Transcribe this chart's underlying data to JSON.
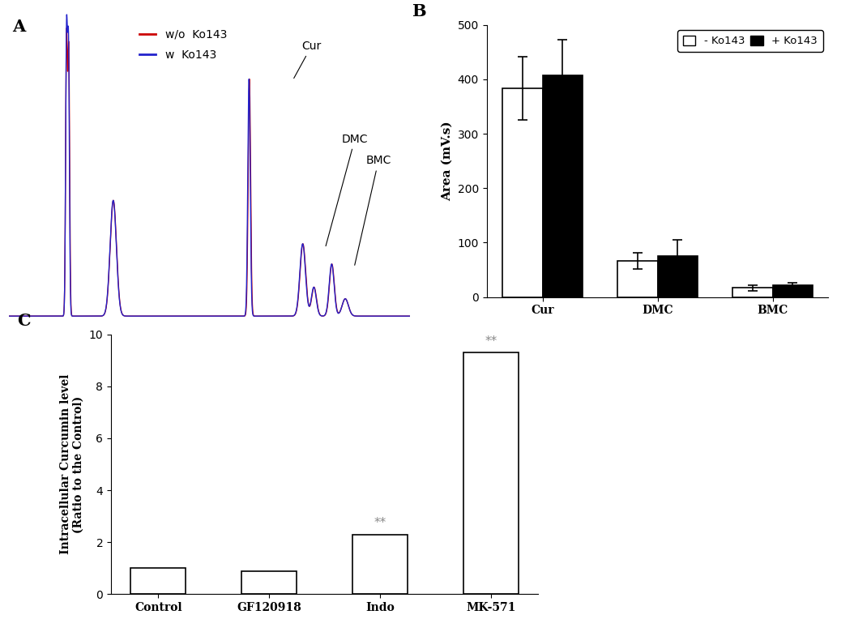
{
  "panel_A": {
    "label": "A",
    "legend": [
      {
        "label": "w/o  Ko143",
        "color": "#cc0000"
      },
      {
        "label": "w  Ko143",
        "color": "#2222cc"
      }
    ]
  },
  "panel_B": {
    "label": "B",
    "categories": [
      "Cur",
      "DMC",
      "BMC"
    ],
    "values_minus": [
      383,
      67,
      17
    ],
    "values_plus": [
      407,
      75,
      22
    ],
    "errors_minus": [
      58,
      15,
      5
    ],
    "errors_plus": [
      65,
      30,
      5
    ],
    "ylabel": "Area (mV.s)",
    "ylim": [
      0,
      500
    ],
    "yticks": [
      0,
      100,
      200,
      300,
      400,
      500
    ],
    "legend_labels": [
      "- Ko143",
      "+ Ko143"
    ],
    "bar_width": 0.35
  },
  "panel_C": {
    "label": "C",
    "categories": [
      "Control",
      "GF120918",
      "Indo",
      "MK-571"
    ],
    "values": [
      1.0,
      0.9,
      2.3,
      9.3
    ],
    "ylabel_line1": "Intracellular Curcumin level",
    "ylabel_line2": "(Ratio to the Control)",
    "ylim": [
      0,
      10
    ],
    "yticks": [
      0,
      2,
      4,
      6,
      8,
      10
    ],
    "significance": [
      {
        "bar_index": 2,
        "text": "**",
        "y": 2.5
      },
      {
        "bar_index": 3,
        "text": "**",
        "y": 9.5
      }
    ],
    "bar_color": "white",
    "bar_edge_color": "black",
    "bar_width": 0.5,
    "sig_color": "#888888"
  }
}
